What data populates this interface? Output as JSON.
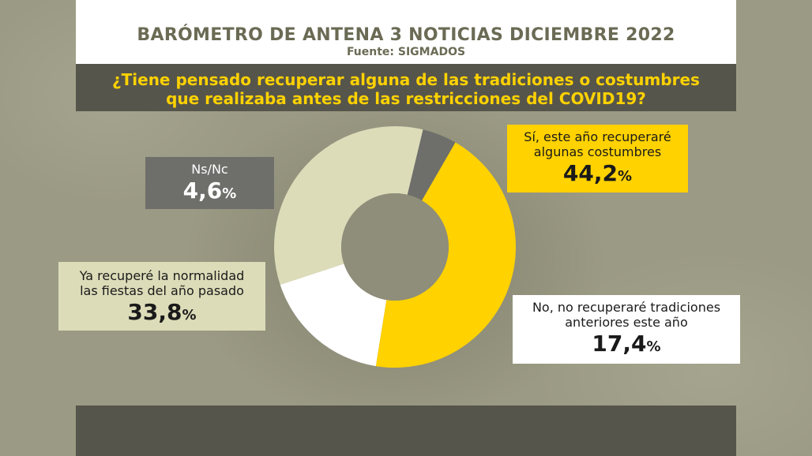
{
  "header": {
    "title": "BARÓMETRO DE ANTENA 3 NOTICIAS DICIEMBRE 2022",
    "source": "Fuente: SIGMADOS"
  },
  "question": {
    "line1": "¿Tiene pensado recuperar alguna de las tradiciones o costumbres",
    "line2": "que realizaba antes de las restricciones del COVID19?"
  },
  "labels": {
    "yes": {
      "line1": "Sí, este año recuperaré",
      "line2": "algunas costumbres",
      "value": "44,2",
      "pct": "%"
    },
    "nsnc": {
      "line1": "Ns/Nc",
      "value": "4,6",
      "pct": "%"
    },
    "ya": {
      "line1": "Ya recuperé la normalidad",
      "line2": "las fiestas del año pasado",
      "value": "33,8",
      "pct": "%"
    },
    "no": {
      "line1": "No, no recuperaré tradiciones",
      "line2": "anteriores este año",
      "value": "17,4",
      "pct": "%"
    }
  },
  "chart_data": {
    "type": "pie",
    "donut": true,
    "categories": [
      "Sí, este año recuperaré algunas costumbres",
      "No, no recuperaré tradiciones anteriores este año",
      "Ya recuperé la normalidad las fiestas del año pasado",
      "Ns/Nc"
    ],
    "values": [
      44.2,
      17.4,
      33.8,
      4.6
    ],
    "colors": [
      "#ffd200",
      "#ffffff",
      "#dcdcb9",
      "#6e6e6b"
    ],
    "start_angle_deg": -60,
    "title": "¿Tiene pensado recuperar alguna de las tradiciones o costumbres que realizaba antes de las restricciones del COVID19?"
  }
}
